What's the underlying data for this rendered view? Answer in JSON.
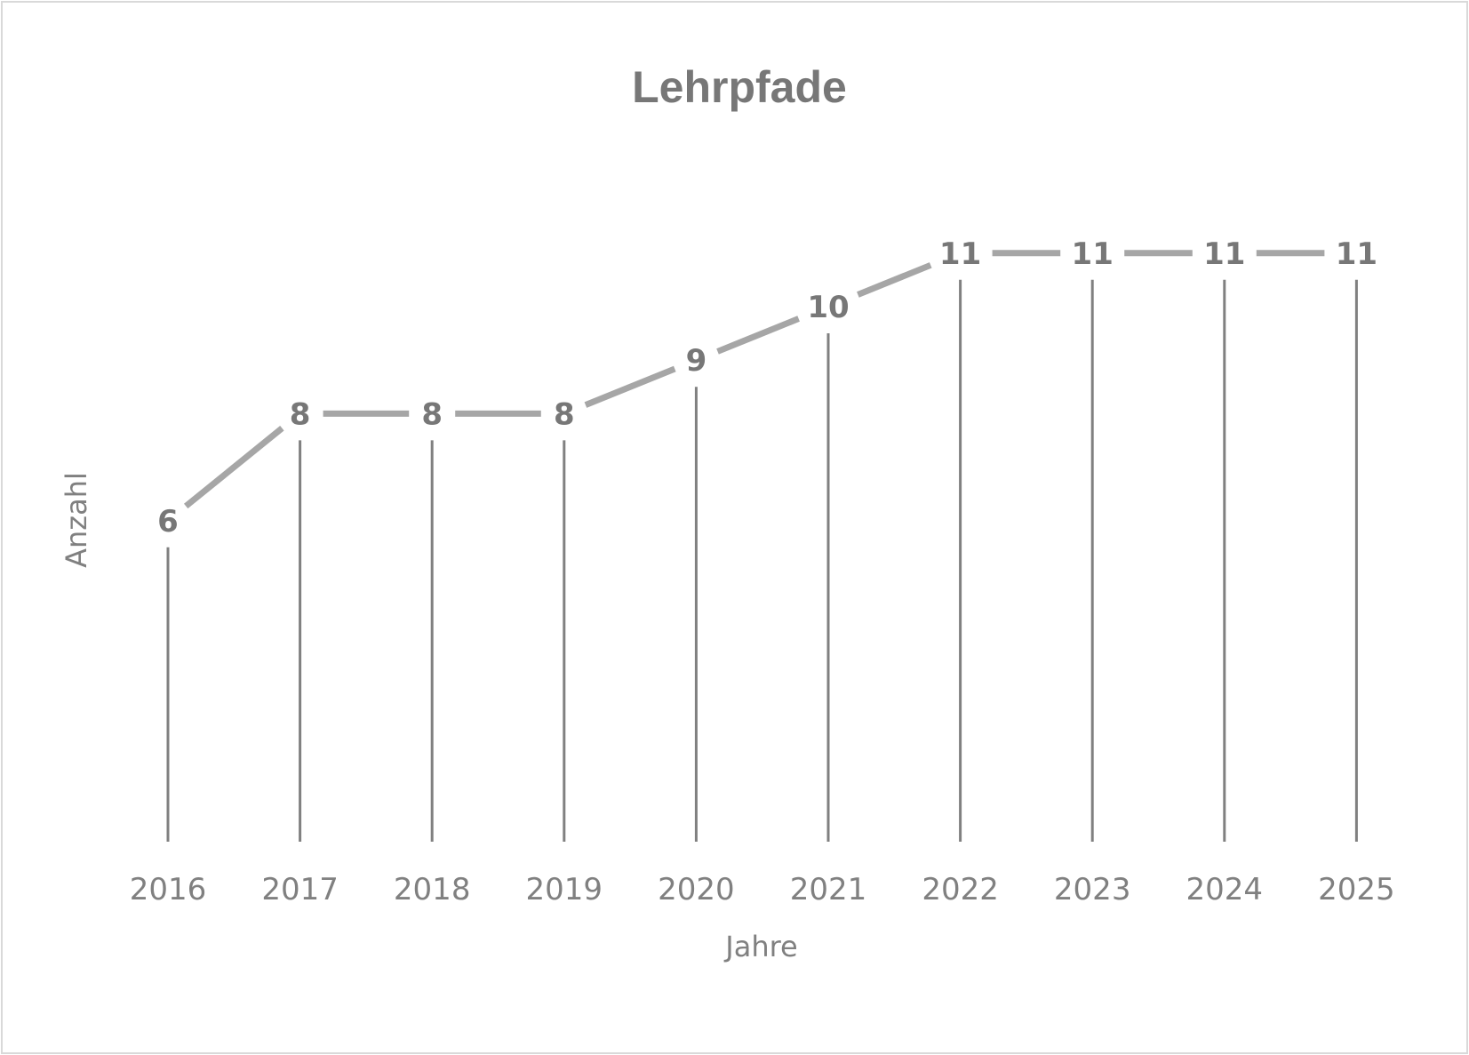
{
  "chart_data": {
    "type": "line",
    "title": "Lehrpfade",
    "xlabel": "Jahre",
    "ylabel": "Anzahl",
    "categories": [
      "2016",
      "2017",
      "2018",
      "2019",
      "2020",
      "2021",
      "2022",
      "2023",
      "2024",
      "2025"
    ],
    "series": [
      {
        "values": [
          6,
          8,
          8,
          8,
          9,
          10,
          11,
          11,
          11,
          11
        ]
      }
    ],
    "ylim": [
      0,
      12
    ],
    "drop_lines": true,
    "data_labels": true,
    "grid": false,
    "legend": "none",
    "colors": {
      "line": "#a6a6a6",
      "drop_line": "#808080",
      "text": "#808080",
      "title": "#777777"
    }
  }
}
